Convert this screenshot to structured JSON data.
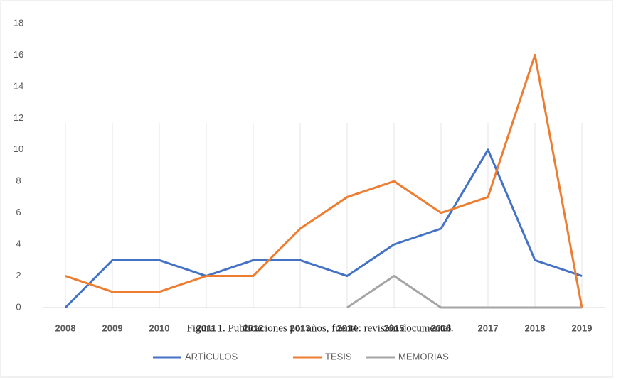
{
  "chart_data": {
    "type": "line",
    "caption": "Figura 1. Publicaciones por años, fuente: revisión documental.",
    "categories": [
      "2008",
      "2009",
      "2010",
      "2011",
      "2012",
      "2013",
      "2014",
      "2015",
      "2016",
      "2017",
      "2018",
      "2019"
    ],
    "series": [
      {
        "name": "ARTÍCULOS",
        "color": "#4472c4",
        "values": [
          0,
          3,
          3,
          2,
          3,
          3,
          2,
          4,
          5,
          10,
          3,
          2
        ]
      },
      {
        "name": "TESIS",
        "color": "#ed7d31",
        "values": [
          2,
          1,
          1,
          2,
          2,
          5,
          7,
          8,
          6,
          7,
          16,
          0
        ]
      },
      {
        "name": "MEMORIAS",
        "color": "#a5a5a5",
        "values": [
          null,
          null,
          null,
          null,
          null,
          null,
          0,
          2,
          0,
          0,
          0,
          0
        ]
      }
    ],
    "ylim": [
      0,
      18
    ],
    "yticks": [
      0,
      2,
      4,
      6,
      8,
      10,
      12,
      14,
      16,
      18
    ],
    "grid": "vertical"
  }
}
